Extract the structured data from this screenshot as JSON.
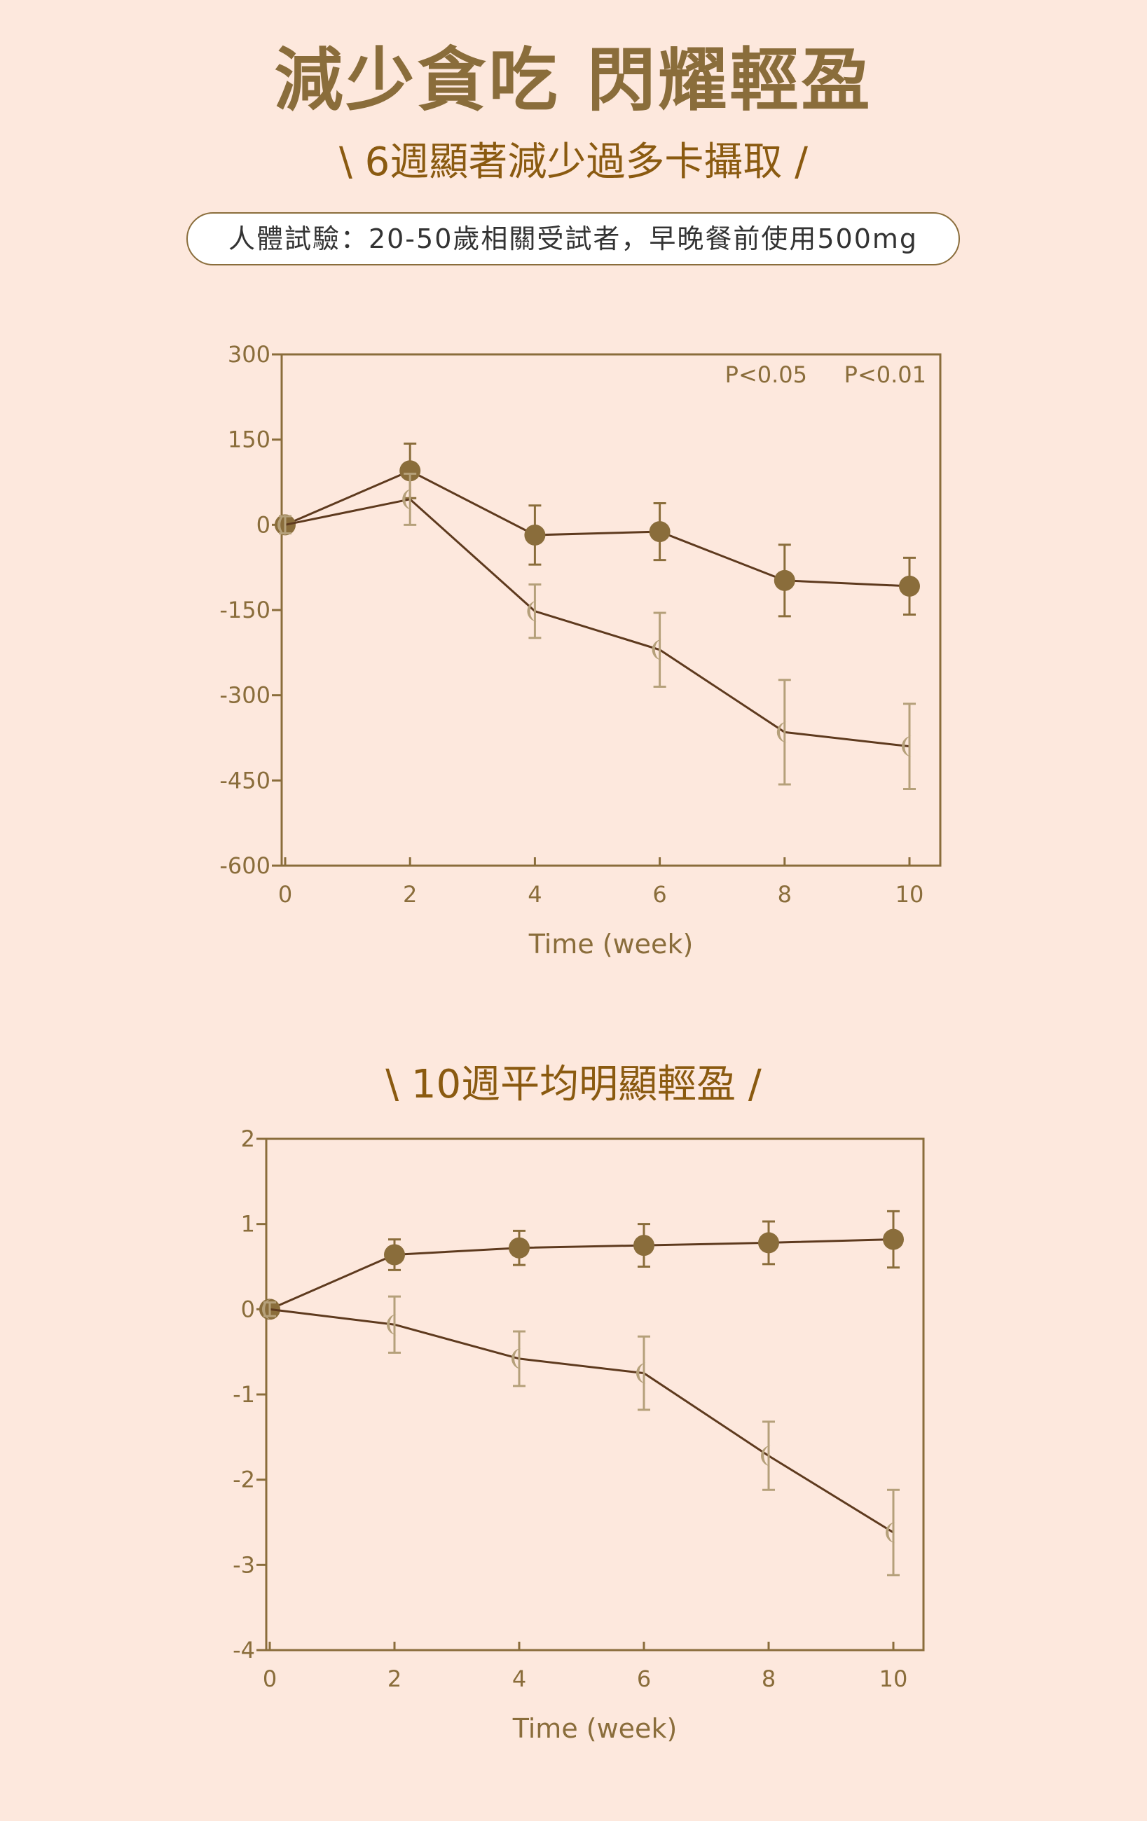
{
  "header": {
    "title": "減少貪吃 閃耀輕盈",
    "subtitle": "\\ 6週顯著減少過多卡攝取 /",
    "note": "人體試驗：20-50歲相關受試者，早晚餐前使用500mg"
  },
  "section2": {
    "subtitle": "\\ 10週平均明顯輕盈 /"
  },
  "colors": {
    "background": "#fde8dd",
    "frame": "#8a6d3b",
    "line": "#5e3a1e",
    "series_dark": "#8a6d3b",
    "series_light": "#b5a07a"
  },
  "chart_data": [
    {
      "type": "line",
      "title": "",
      "xlabel": "Time (week)",
      "ylabel": "",
      "xlim": [
        0,
        10
      ],
      "ylim": [
        -600,
        300
      ],
      "x": [
        0,
        2,
        4,
        6,
        8,
        10
      ],
      "xticks": [
        "0",
        "2",
        "4",
        "6",
        "8",
        "10"
      ],
      "yticks": [
        "300",
        "150",
        "0",
        "-150",
        "-300",
        "-450",
        "-600"
      ],
      "annotations": [
        "P<0.05",
        "P<0.01"
      ],
      "series": [
        {
          "marker": "circle",
          "values": [
            0,
            95,
            -18,
            -12,
            -98,
            -108
          ],
          "error": [
            15,
            48,
            52,
            50,
            63,
            50
          ]
        },
        {
          "marker": "crescent",
          "values": [
            0,
            45,
            -152,
            -220,
            -365,
            -390
          ],
          "error": [
            15,
            45,
            47,
            65,
            92,
            75
          ]
        }
      ]
    },
    {
      "type": "line",
      "title": "",
      "xlabel": "Time (week)",
      "ylabel": "",
      "xlim": [
        0,
        10
      ],
      "ylim": [
        -4,
        2
      ],
      "x": [
        0,
        2,
        4,
        6,
        8,
        10
      ],
      "xticks": [
        "0",
        "2",
        "4",
        "6",
        "8",
        "10"
      ],
      "yticks": [
        "2",
        "1",
        "0",
        "-1",
        "-2",
        "-3",
        "-4"
      ],
      "series": [
        {
          "marker": "circle",
          "values": [
            0,
            0.64,
            0.72,
            0.75,
            0.78,
            0.82
          ],
          "error": [
            0.08,
            0.18,
            0.2,
            0.25,
            0.25,
            0.33
          ]
        },
        {
          "marker": "crescent",
          "values": [
            0,
            -0.18,
            -0.58,
            -0.75,
            -1.72,
            -2.62
          ],
          "error": [
            0.08,
            0.33,
            0.32,
            0.43,
            0.4,
            0.5
          ]
        }
      ]
    }
  ]
}
